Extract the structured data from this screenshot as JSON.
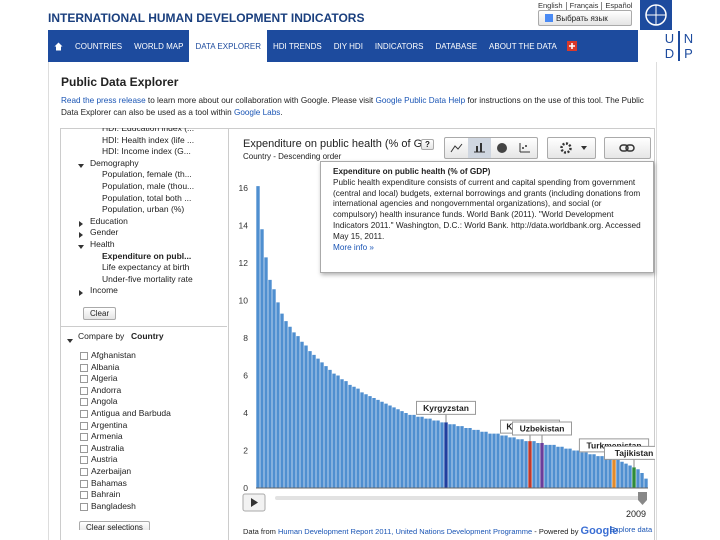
{
  "header": {
    "title": "INTERNATIONAL HUMAN DEVELOPMENT INDICATORS",
    "languages": [
      "English",
      "Français",
      "Español"
    ],
    "translate": "Выбрать язык",
    "undp_logo": [
      "U",
      "N",
      "D",
      "P"
    ]
  },
  "nav": {
    "items": [
      "COUNTRIES",
      "WORLD MAP",
      "DATA EXPLORER",
      "HDI TRENDS",
      "DIY HDI",
      "INDICATORS",
      "DATABASE",
      "ABOUT THE DATA"
    ],
    "active": "DATA EXPLORER"
  },
  "page_title": "Public Data Explorer",
  "intro": [
    {
      "text": "Read the press release",
      "link": true
    },
    {
      "text": " to learn more about our collaboration with Google. Please visit ",
      "link": false
    },
    {
      "text": "Google Public Data Help",
      "link": true
    },
    {
      "text": " for instructions on the use of this tool. The Public Data Explorer can also be used as a tool within ",
      "link": false
    },
    {
      "text": "Google Labs",
      "link": true
    },
    {
      "text": ".",
      "link": false
    }
  ],
  "sidebar": {
    "indicators": [
      {
        "label": "HDI: Education index (...",
        "kind": "item"
      },
      {
        "label": "HDI: Health index (life ...",
        "kind": "item"
      },
      {
        "label": "HDI: Income index (G...",
        "kind": "item"
      },
      {
        "label": "Demography",
        "kind": "open"
      },
      {
        "label": "Population, female (th...",
        "kind": "item"
      },
      {
        "label": "Population, male (thou...",
        "kind": "item"
      },
      {
        "label": "Population, total both ...",
        "kind": "item"
      },
      {
        "label": "Population, urban (%)",
        "kind": "item"
      },
      {
        "label": "Education",
        "kind": "closed"
      },
      {
        "label": "Gender",
        "kind": "closed"
      },
      {
        "label": "Health",
        "kind": "open"
      },
      {
        "label": "Expenditure on publ...",
        "kind": "selected"
      },
      {
        "label": "Life expectancy at birth",
        "kind": "item"
      },
      {
        "label": "Under-five mortality rate",
        "kind": "item"
      },
      {
        "label": "Income",
        "kind": "closed"
      }
    ],
    "clear": "Clear",
    "compare_by": "Compare by",
    "compare_dimension": "Country",
    "countries": [
      "Afghanistan",
      "Albania",
      "Algeria",
      "Andorra",
      "Angola",
      "Antigua and Barbuda",
      "Argentina",
      "Armenia",
      "Australia",
      "Austria",
      "Azerbaijan",
      "Bahamas",
      "Bahrain",
      "Bangladesh"
    ],
    "clear_selections": "Clear selections"
  },
  "help": "?",
  "tooltip": {
    "title": "Expenditure on public health (% of GDP)",
    "body": "Public health expenditure consists of current and capital spending from government (central and local) budgets, external borrowings and grants (including donations from international agencies and nongovernmental organizations), and social (or compulsory) health insurance funds. World Bank (2011). \"World Development Indicators 2011.\" Washington, D.C.: World Bank. http://data.worldbank.org. Accessed May 15, 2011.",
    "more": "More info »"
  },
  "chart_data": {
    "type": "bar",
    "title": "Expenditure on public health (% of G...",
    "subtitle": "Country - Descending order",
    "categories": [
      null,
      null,
      null,
      null,
      null,
      null,
      null,
      null,
      null,
      null,
      null,
      null,
      null,
      null,
      null,
      null,
      null,
      null,
      null,
      null,
      null,
      null,
      null,
      null,
      null,
      null,
      null,
      null,
      null,
      null,
      null,
      null,
      null,
      null,
      null,
      null,
      null,
      null,
      null,
      null,
      null,
      null,
      null,
      null,
      null,
      null,
      null,
      "Kyrgyzstan",
      null,
      null,
      null,
      null,
      null,
      null,
      null,
      null,
      null,
      null,
      null,
      null,
      null,
      null,
      null,
      null,
      null,
      null,
      null,
      null,
      "Kazakhstan",
      null,
      null,
      "Uzbekistan",
      null,
      null,
      null,
      null,
      null,
      null,
      null,
      null,
      null,
      null,
      null,
      null,
      null,
      null,
      null,
      null,
      null,
      "Turkmenistan",
      null,
      null,
      null,
      null,
      "Tajikistan",
      null,
      null,
      null
    ],
    "values": [
      16.1,
      13.8,
      12.3,
      11.1,
      10.6,
      9.9,
      9.3,
      8.9,
      8.6,
      8.3,
      8.1,
      7.8,
      7.6,
      7.3,
      7.1,
      6.9,
      6.7,
      6.5,
      6.3,
      6.1,
      6.0,
      5.8,
      5.7,
      5.5,
      5.4,
      5.3,
      5.1,
      5.0,
      4.9,
      4.8,
      4.7,
      4.6,
      4.5,
      4.4,
      4.3,
      4.2,
      4.1,
      4.0,
      3.9,
      3.9,
      3.8,
      3.8,
      3.7,
      3.7,
      3.6,
      3.6,
      3.5,
      3.5,
      3.4,
      3.4,
      3.3,
      3.3,
      3.2,
      3.2,
      3.1,
      3.1,
      3.0,
      3.0,
      2.9,
      2.9,
      2.9,
      2.8,
      2.8,
      2.7,
      2.7,
      2.6,
      2.6,
      2.5,
      2.5,
      2.5,
      2.4,
      2.4,
      2.3,
      2.3,
      2.3,
      2.2,
      2.2,
      2.1,
      2.1,
      2.0,
      2.0,
      1.9,
      1.9,
      1.8,
      1.8,
      1.7,
      1.7,
      1.6,
      1.6,
      1.5,
      1.5,
      1.4,
      1.3,
      1.2,
      1.1,
      1.0,
      0.8,
      0.5
    ],
    "color": "#4f8fd0",
    "highlight_colors": {
      "Kyrgyzstan": "#1f3f9f",
      "Kazakhstan": "#c0392b",
      "Uzbekistan": "#6a3d9a",
      "Turkmenistan": "#e08a2c",
      "Tajikistan": "#2e8b3a"
    },
    "ylim": [
      0,
      16.4
    ],
    "yticks": [
      0,
      2,
      4,
      6,
      8,
      10,
      12,
      14,
      16
    ],
    "grid": false,
    "year": "2009"
  },
  "footer": {
    "prefix": "Data from ",
    "source": "Human Development Report 2011, United Nations Development Programme",
    "powered": " - Powered by ",
    "google": "Google",
    "explore": "Explore data"
  }
}
